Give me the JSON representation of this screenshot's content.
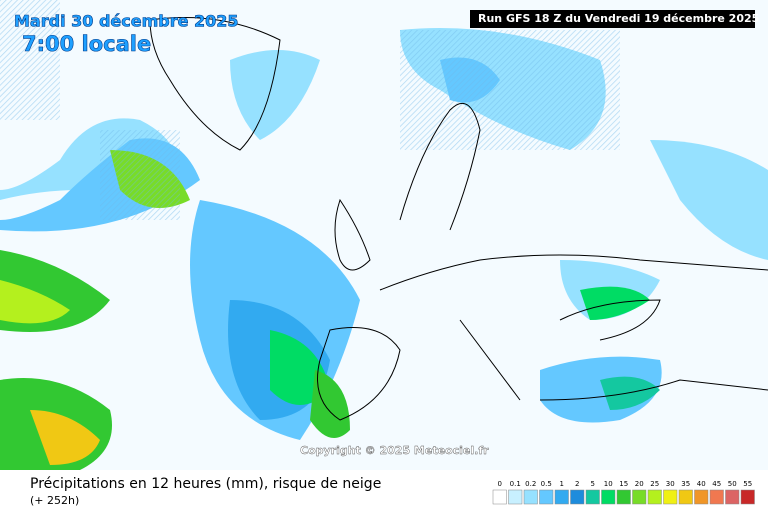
{
  "header": {
    "date": "Mardi 30 décembre 2025",
    "time": "7:00 locale",
    "run": "Run GFS 18 Z du Vendredi 19 décembre 2025"
  },
  "map": {
    "copyright": "Copyright © 2025 Meteociel.fr"
  },
  "footer": {
    "title": "Précipitations en 12 heures (mm), risque de neige",
    "lead": "(+ 252h)"
  },
  "legend": {
    "items": [
      {
        "label": "0",
        "color": "#ffffff"
      },
      {
        "label": "0.1",
        "color": "#c8f0ff"
      },
      {
        "label": "0.2",
        "color": "#96e1ff"
      },
      {
        "label": "0.5",
        "color": "#64c8ff"
      },
      {
        "label": "1",
        "color": "#32aaf0"
      },
      {
        "label": "2",
        "color": "#1e8cdc"
      },
      {
        "label": "5",
        "color": "#14c8a0"
      },
      {
        "label": "10",
        "color": "#00dc64"
      },
      {
        "label": "15",
        "color": "#32c832"
      },
      {
        "label": "20",
        "color": "#78dc28"
      },
      {
        "label": "25",
        "color": "#b4f01e"
      },
      {
        "label": "30",
        "color": "#f0f014"
      },
      {
        "label": "35",
        "color": "#f0c814"
      },
      {
        "label": "40",
        "color": "#f09628"
      },
      {
        "label": "45",
        "color": "#f07850"
      },
      {
        "label": "50",
        "color": "#dc6464"
      },
      {
        "label": "55",
        "color": "#c82828"
      }
    ]
  }
}
